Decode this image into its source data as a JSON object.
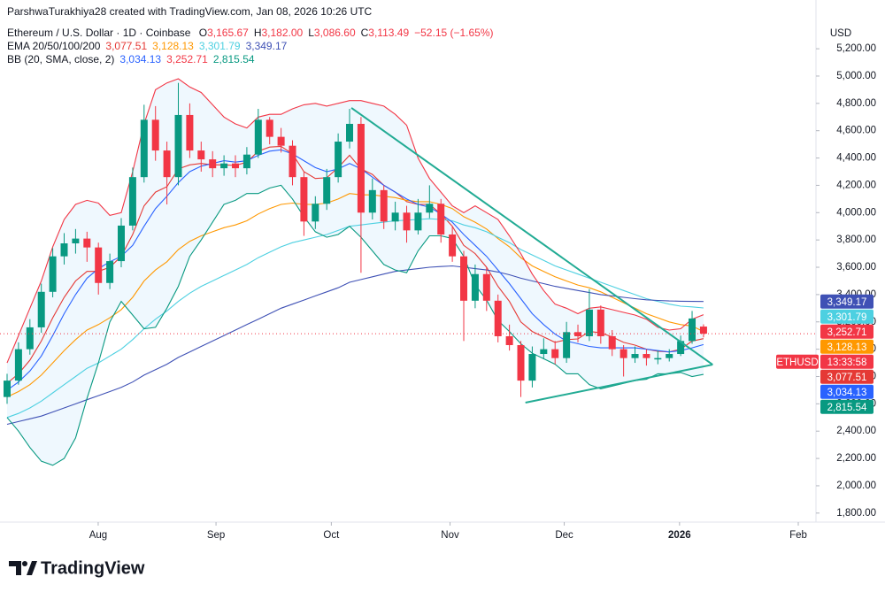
{
  "header": {
    "attribution": "ParshwaTurakhiya28 created with TradingView.com, Jan 08, 2026 10:26 UTC",
    "symbol": "Ethereum / U.S. Dollar · 1D · Coinbase",
    "ohlc": [
      {
        "key": "O",
        "value": "3,165.67"
      },
      {
        "key": "H",
        "value": "3,182.00"
      },
      {
        "key": "L",
        "value": "3,086.60"
      },
      {
        "key": "C",
        "value": "3,113.49"
      }
    ],
    "change": "−52.15 (−1.65%)",
    "currency": "USD",
    "brand": "TradingView"
  },
  "chart_data": {
    "type": "candlestick",
    "up_color": "#089981",
    "down_color": "#f23645",
    "xlim": [
      -0.62,
      70.85
    ],
    "xticks": [
      {
        "value": 7.98,
        "label": "Aug"
      },
      {
        "value": 18.3,
        "label": "Sep"
      },
      {
        "value": 28.4,
        "label": "Oct"
      },
      {
        "value": 38.8,
        "label": "Nov"
      },
      {
        "value": 48.8,
        "label": "Dec"
      },
      {
        "value": 58.9,
        "label": "2026",
        "emphasis": true
      },
      {
        "value": 69.3,
        "label": "Feb"
      }
    ],
    "ylim": [
      1734,
      5395
    ],
    "yticks": [
      {
        "value": 1800,
        "label": "1,800.00"
      },
      {
        "value": 2000,
        "label": "2,000.00"
      },
      {
        "value": 2200,
        "label": "2,200.00"
      },
      {
        "value": 2400,
        "label": "2,400.00"
      },
      {
        "value": 2600,
        "label": "2,600.00"
      },
      {
        "value": 2800,
        "label": "2,800.00"
      },
      {
        "value": 3000,
        "label": "3,000.00"
      },
      {
        "value": 3200,
        "label": "3,200.00"
      },
      {
        "value": 3400,
        "label": "3,400.00"
      },
      {
        "value": 3600,
        "label": "3,600.00"
      },
      {
        "value": 3800,
        "label": "3,800.00"
      },
      {
        "value": 4000,
        "label": "4,000.00"
      },
      {
        "value": 4200,
        "label": "4,200.00"
      },
      {
        "value": 4400,
        "label": "4,400.00"
      },
      {
        "value": 4600,
        "label": "4,600.00"
      },
      {
        "value": 4800,
        "label": "4,800.00"
      },
      {
        "value": 5000,
        "label": "5,000.00"
      },
      {
        "value": 5200,
        "label": "5,200.00"
      }
    ],
    "grid": false,
    "candles": [
      [
        2650,
        2820,
        2600,
        2770
      ],
      [
        2770,
        3050,
        2740,
        3000
      ],
      [
        3000,
        3220,
        2960,
        3160
      ],
      [
        3160,
        3480,
        3120,
        3420
      ],
      [
        3420,
        3740,
        3380,
        3680
      ],
      [
        3680,
        3850,
        3620,
        3775
      ],
      [
        3775,
        3880,
        3700,
        3810
      ],
      [
        3810,
        3860,
        3640,
        3745
      ],
      [
        3745,
        3780,
        3400,
        3485
      ],
      [
        3485,
        3700,
        3440,
        3645
      ],
      [
        3645,
        3960,
        3600,
        3905
      ],
      [
        3905,
        4330,
        3870,
        4260
      ],
      [
        4260,
        4790,
        4220,
        4680
      ],
      [
        4680,
        4780,
        4380,
        4455
      ],
      [
        4455,
        4520,
        4060,
        4260
      ],
      [
        4260,
        4950,
        4200,
        4715
      ],
      [
        4715,
        4800,
        4400,
        4455
      ],
      [
        4455,
        4520,
        4300,
        4390
      ],
      [
        4390,
        4450,
        4260,
        4325
      ],
      [
        4325,
        4420,
        4270,
        4360
      ],
      [
        4360,
        4420,
        4260,
        4325
      ],
      [
        4325,
        4480,
        4280,
        4425
      ],
      [
        4425,
        4760,
        4400,
        4680
      ],
      [
        4680,
        4700,
        4500,
        4555
      ],
      [
        4555,
        4620,
        4440,
        4490
      ],
      [
        4490,
        4530,
        4200,
        4260
      ],
      [
        4260,
        4300,
        3830,
        3935
      ],
      [
        3935,
        4120,
        3880,
        4065
      ],
      [
        4065,
        4320,
        4020,
        4260
      ],
      [
        4260,
        4580,
        4220,
        4520
      ],
      [
        4520,
        4760,
        4470,
        4650
      ],
      [
        4650,
        4700,
        3560,
        4000
      ],
      [
        4000,
        4250,
        3950,
        4165
      ],
      [
        4165,
        4200,
        3880,
        3935
      ],
      [
        3935,
        4080,
        3870,
        4000
      ],
      [
        4000,
        4050,
        3780,
        3870
      ],
      [
        3870,
        4100,
        3840,
        4000
      ],
      [
        4000,
        4200,
        3960,
        4065
      ],
      [
        4065,
        4100,
        3780,
        3840
      ],
      [
        3840,
        3900,
        3640,
        3680
      ],
      [
        3680,
        3720,
        3060,
        3355
      ],
      [
        3355,
        3620,
        3300,
        3550
      ],
      [
        3550,
        3600,
        3280,
        3355
      ],
      [
        3355,
        3400,
        3050,
        3095
      ],
      [
        3095,
        3180,
        2990,
        3030
      ],
      [
        3030,
        3060,
        2650,
        2770
      ],
      [
        2770,
        3020,
        2720,
        2965
      ],
      [
        2965,
        3080,
        2930,
        3000
      ],
      [
        3000,
        3060,
        2890,
        2935
      ],
      [
        2935,
        3200,
        2900,
        3125
      ],
      [
        3125,
        3180,
        3050,
        3095
      ],
      [
        3095,
        3440,
        3060,
        3290
      ],
      [
        3290,
        3320,
        3040,
        3095
      ],
      [
        3095,
        3140,
        2950,
        3000
      ],
      [
        3000,
        3030,
        2800,
        2935
      ],
      [
        2935,
        3020,
        2900,
        2965
      ],
      [
        2965,
        3000,
        2880,
        2935
      ],
      [
        2925,
        2990,
        2890,
        2935
      ],
      [
        2935,
        3000,
        2910,
        2965
      ],
      [
        2965,
        3100,
        2950,
        3060
      ],
      [
        3060,
        3280,
        3040,
        3225
      ],
      [
        3165.67,
        3182,
        3086.6,
        3113.49
      ]
    ],
    "symbol_tag": "ETHUSD",
    "countdown": "13:33:58",
    "indicators": [
      {
        "title": "EMA 20/50/100/200",
        "lines": [
          {
            "color": "#e53935",
            "value_label": "3,077.51",
            "values": [
              2750,
              2820,
              2920,
              3060,
              3230,
              3380,
              3500,
              3570,
              3570,
              3600,
              3680,
              3840,
              4050,
              4150,
              4190,
              4320,
              4350,
              4360,
              4350,
              4350,
              4345,
              4370,
              4450,
              4480,
              4485,
              4430,
              4300,
              4250,
              4255,
              4330,
              4420,
              4320,
              4280,
              4200,
              4150,
              4080,
              4060,
              4060,
              3990,
              3900,
              3760,
              3700,
              3600,
              3460,
              3350,
              3200,
              3130,
              3090,
              3050,
              3070,
              3075,
              3130,
              3120,
              3090,
              3050,
              3030,
              3000,
              2985,
              2980,
              3000,
              3060,
              3077.51
            ]
          },
          {
            "color": "#ff9800",
            "value_label": "3,128.13",
            "values": [
              2650,
              2690,
              2740,
              2810,
              2900,
              2990,
              3070,
              3140,
              3180,
              3230,
              3290,
              3380,
              3500,
              3580,
              3640,
              3730,
              3790,
              3830,
              3860,
              3890,
              3910,
              3940,
              3990,
              4030,
              4060,
              4070,
              4060,
              4060,
              4070,
              4100,
              4140,
              4130,
              4130,
              4120,
              4110,
              4090,
              4080,
              4080,
              4060,
              4030,
              3970,
              3930,
              3880,
              3810,
              3750,
              3670,
              3610,
              3570,
              3530,
              3500,
              3470,
              3450,
              3420,
              3380,
              3340,
              3300,
              3260,
              3230,
              3200,
              3180,
              3170,
              3128.13
            ]
          },
          {
            "color": "#4dd0e1",
            "value_label": "3,301.79",
            "values": [
              2500,
              2530,
              2570,
              2620,
              2680,
              2740,
              2800,
              2860,
              2900,
              2950,
              3000,
              3070,
              3150,
              3220,
              3280,
              3350,
              3410,
              3460,
              3500,
              3540,
              3580,
              3620,
              3670,
              3710,
              3750,
              3780,
              3800,
              3820,
              3840,
              3870,
              3900,
              3910,
              3920,
              3930,
              3940,
              3945,
              3950,
              3955,
              3950,
              3940,
              3910,
              3890,
              3860,
              3820,
              3780,
              3730,
              3690,
              3650,
              3610,
              3580,
              3550,
              3520,
              3490,
              3460,
              3430,
              3400,
              3370,
              3350,
              3330,
              3315,
              3310,
              3301.79
            ]
          },
          {
            "color": "#3f51b5",
            "value_label": "3,349.17",
            "values": [
              2450,
              2470,
              2490,
              2510,
              2540,
              2570,
              2600,
              2630,
              2660,
              2690,
              2720,
              2760,
              2810,
              2850,
              2890,
              2940,
              2980,
              3020,
              3060,
              3100,
              3140,
              3180,
              3220,
              3260,
              3300,
              3330,
              3360,
              3390,
              3420,
              3450,
              3490,
              3510,
              3530,
              3550,
              3570,
              3580,
              3590,
              3600,
              3605,
              3610,
              3600,
              3590,
              3580,
              3565,
              3545,
              3520,
              3500,
              3480,
              3460,
              3445,
              3430,
              3415,
              3400,
              3390,
              3380,
              3370,
              3362,
              3357,
              3353,
              3351,
              3350,
              3349.17
            ]
          }
        ]
      },
      {
        "title": "BB (20, SMA, close, 2)",
        "fill": "rgba(33,150,243,0.07)",
        "lines": [
          {
            "color": "#2962ff",
            "value_label": "3,034.13",
            "values": [
              2700,
              2760,
              2840,
              2950,
              3100,
              3260,
              3400,
              3520,
              3590,
              3640,
              3680,
              3760,
              3900,
              4030,
              4120,
              4220,
              4300,
              4340,
              4360,
              4380,
              4370,
              4380,
              4420,
              4450,
              4460,
              4430,
              4380,
              4330,
              4300,
              4320,
              4360,
              4320,
              4260,
              4200,
              4150,
              4100,
              4060,
              4040,
              3990,
              3930,
              3840,
              3760,
              3680,
              3580,
              3480,
              3370,
              3260,
              3180,
              3110,
              3060,
              3040,
              3020,
              3010,
              3010,
              3010,
              3010,
              3000,
              2990,
              2980,
              2990,
              3010,
              3034.13
            ]
          },
          {
            "color": "#f23645",
            "value_label": "3,252.71",
            "values": [
              2900,
              3100,
              3300,
              3500,
              3750,
              3950,
              4060,
              4090,
              4070,
              3980,
              4000,
              4300,
              4650,
              4900,
              4950,
              4980,
              4920,
              4880,
              4790,
              4700,
              4650,
              4620,
              4700,
              4720,
              4720,
              4760,
              4790,
              4800,
              4780,
              4800,
              4820,
              4820,
              4800,
              4780,
              4720,
              4640,
              4400,
              4250,
              4150,
              4050,
              4000,
              4050,
              4000,
              3950,
              3830,
              3700,
              3550,
              3430,
              3330,
              3300,
              3260,
              3300,
              3310,
              3290,
              3270,
              3250,
              3220,
              3160,
              3140,
              3150,
              3220,
              3252.71
            ]
          },
          {
            "color": "#089981",
            "value_label": "2,815.54",
            "values": [
              2500,
              2400,
              2280,
              2180,
              2150,
              2200,
              2350,
              2640,
              2900,
              3200,
              3350,
              3250,
              3150,
              3160,
              3300,
              3460,
              3680,
              3800,
              3930,
              4060,
              4090,
              4140,
              4140,
              4180,
              4200,
              4100,
              3970,
              3860,
              3820,
              3840,
              3900,
              3820,
              3720,
              3620,
              3580,
              3560,
              3720,
              3830,
              3830,
              3810,
              3680,
              3470,
              3360,
              3210,
              3130,
              3040,
              2970,
              2930,
              2890,
              2820,
              2820,
              2740,
              2710,
              2730,
              2750,
              2770,
              2780,
              2820,
              2820,
              2830,
              2800,
              2815.54
            ]
          }
        ]
      }
    ],
    "trendlines": [
      {
        "color": "#22ab94",
        "points": [
          [
            30.16,
            4767
          ],
          [
            61.8,
            2887
          ]
        ]
      },
      {
        "color": "#22ab94",
        "points": [
          [
            45.4,
            2609
          ],
          [
            61.8,
            2887
          ]
        ]
      }
    ]
  }
}
